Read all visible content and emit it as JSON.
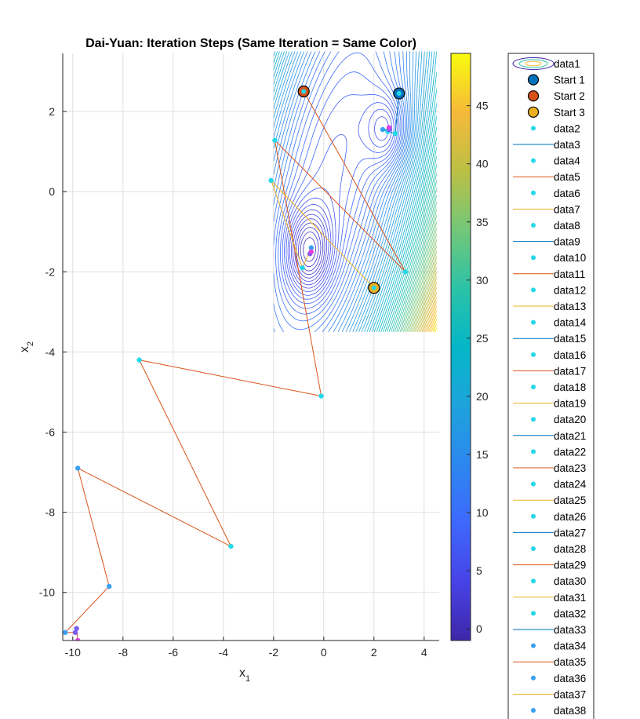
{
  "chart_data": {
    "type": "contour",
    "title": "Dai-Yuan: Iteration Steps (Same Iteration = Same Color)",
    "xlabel": "x",
    "xlabel_sub": "1",
    "ylabel": "x",
    "ylabel_sub": "2",
    "xlim": [
      -10.4,
      4.6
    ],
    "ylim": [
      -11.2,
      3.45
    ],
    "xticks": [
      -10,
      -8,
      -6,
      -4,
      -2,
      0,
      2,
      4
    ],
    "yticks": [
      -10,
      -8,
      -6,
      -4,
      -2,
      0,
      2
    ],
    "grid": true,
    "contour_region": {
      "x": [
        -2,
        4.5
      ],
      "y": [
        -3.5,
        3.5
      ]
    },
    "colorbar": {
      "min": -1,
      "max": 49.5,
      "ticks": [
        0,
        5,
        10,
        15,
        20,
        25,
        30,
        35,
        40,
        45
      ]
    },
    "starts": [
      {
        "name": "Start 1",
        "x": 3.0,
        "y": 2.45,
        "color": "#0072BD"
      },
      {
        "name": "Start 2",
        "x": -0.8,
        "y": 2.5,
        "color": "#D95319"
      },
      {
        "name": "Start 3",
        "x": 2.0,
        "y": -2.4,
        "color": "#EDB120"
      }
    ],
    "paths": [
      {
        "start": "Start 1",
        "color": "#0072BD",
        "points": [
          [
            3.0,
            2.45
          ],
          [
            2.85,
            1.45
          ],
          [
            2.55,
            1.5
          ],
          [
            2.35,
            1.55
          ],
          [
            2.6,
            1.55
          ],
          [
            2.6,
            1.6
          ]
        ]
      },
      {
        "start": "Start 2",
        "color": "#D95319",
        "points": [
          [
            -0.8,
            2.5
          ],
          [
            3.25,
            -2.0
          ],
          [
            -1.95,
            1.28
          ],
          [
            -0.1,
            -5.1
          ],
          [
            -7.35,
            -4.2
          ],
          [
            -3.7,
            -8.85
          ],
          [
            -9.8,
            -6.9
          ],
          [
            -8.55,
            -9.85
          ],
          [
            -10.3,
            -11.0
          ],
          [
            -9.9,
            -11.0
          ],
          [
            -9.85,
            -10.9
          ],
          [
            -9.8,
            -11.2
          ]
        ]
      },
      {
        "start": "Start 3",
        "color": "#EDB120",
        "points": [
          [
            2.0,
            -2.4
          ],
          [
            -2.1,
            0.28
          ],
          [
            -0.85,
            -1.9
          ],
          [
            -0.5,
            -1.4
          ],
          [
            -0.55,
            -1.55
          ],
          [
            -0.5,
            -1.5
          ]
        ]
      }
    ],
    "legend": {
      "placement": "outside-right",
      "entries": [
        "data1",
        "Start 1",
        "Start 2",
        "Start 3",
        "data2",
        "data3",
        "data4",
        "data5",
        "data6",
        "data7",
        "data8",
        "data9",
        "data10",
        "data11",
        "data12",
        "data13",
        "data14",
        "data15",
        "data16",
        "data17",
        "data18",
        "data19",
        "data20",
        "data21",
        "data22",
        "data23",
        "data24",
        "data25",
        "data26",
        "data27",
        "data28",
        "data29",
        "data30",
        "data31",
        "data32",
        "data33",
        "data34",
        "data35",
        "data36",
        "data37",
        "data38"
      ]
    }
  }
}
